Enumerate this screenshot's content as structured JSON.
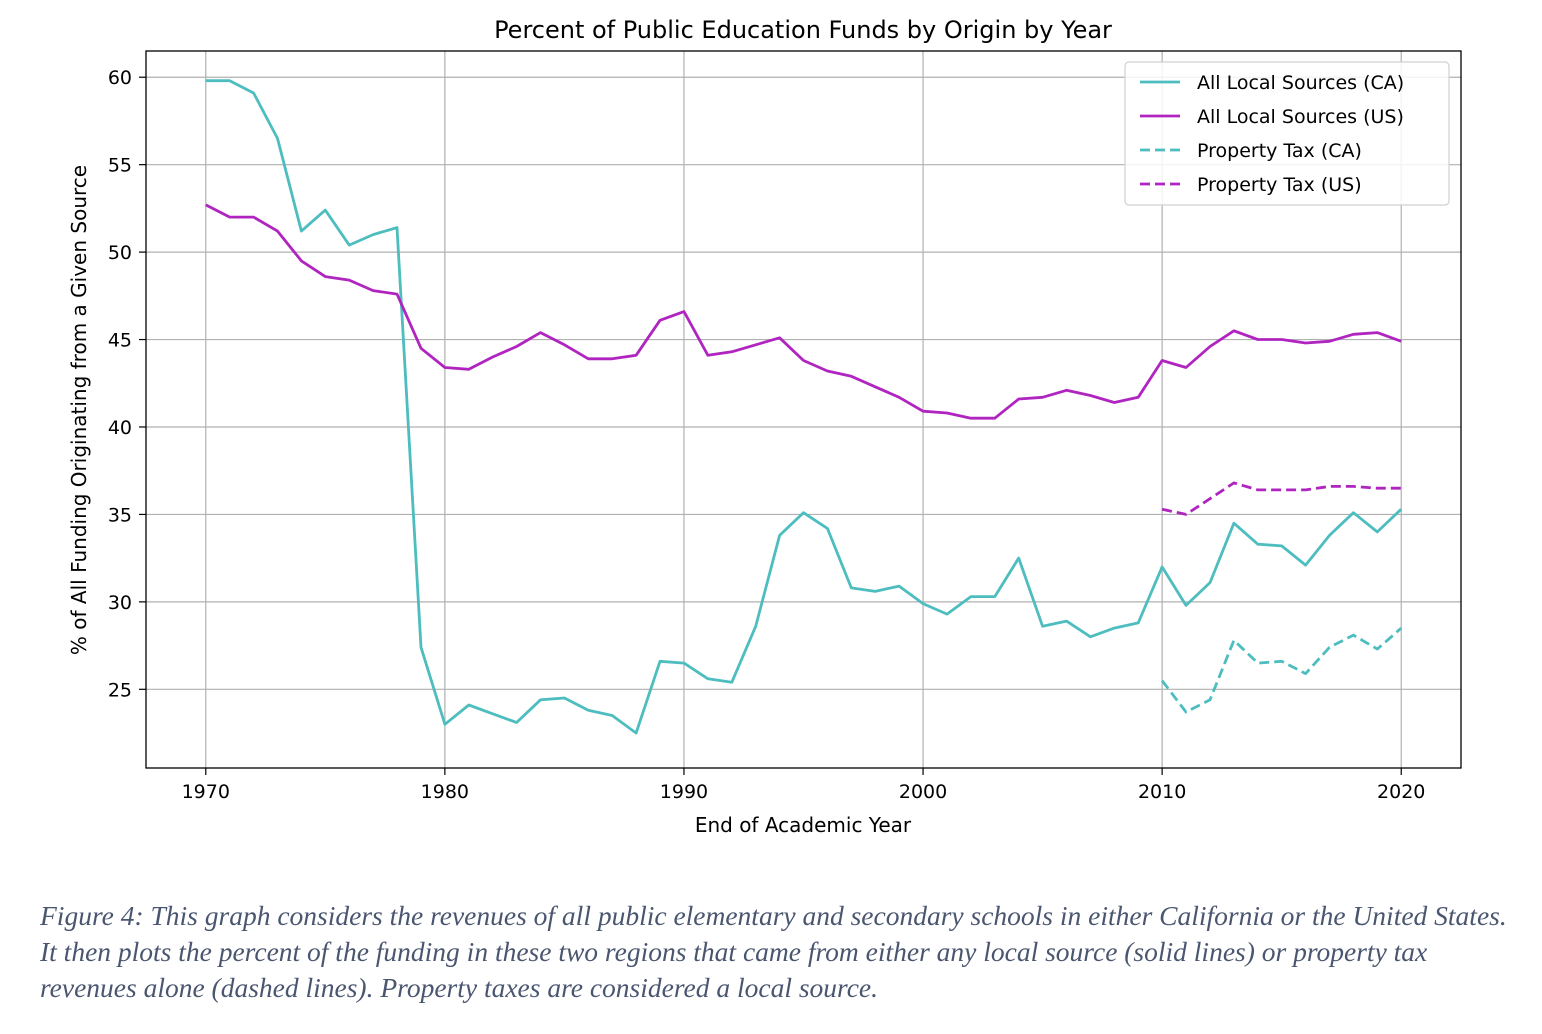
{
  "chart_data": {
    "type": "line",
    "title": "Percent of Public Education Funds by Origin by Year",
    "xlabel": "End of Academic Year",
    "ylabel": "% of All Funding Originating from a Given Source",
    "xlim": [
      1967.5,
      2022.5
    ],
    "ylim": [
      20.5,
      61.5
    ],
    "xticks": [
      1970,
      1980,
      1990,
      2000,
      2010,
      2020
    ],
    "yticks": [
      25,
      30,
      35,
      40,
      45,
      50,
      55,
      60
    ],
    "grid": true,
    "legend_position": "top-right",
    "series": [
      {
        "name": "All Local Sources (CA)",
        "color": "#4dbdbf",
        "style": "solid",
        "x": [
          1970,
          1971,
          1972,
          1973,
          1974,
          1975,
          1976,
          1977,
          1978,
          1979,
          1980,
          1981,
          1982,
          1983,
          1984,
          1985,
          1986,
          1987,
          1988,
          1989,
          1990,
          1991,
          1992,
          1993,
          1994,
          1995,
          1996,
          1997,
          1998,
          1999,
          2000,
          2001,
          2002,
          2003,
          2004,
          2005,
          2006,
          2007,
          2008,
          2009,
          2010,
          2011,
          2012,
          2013,
          2014,
          2015,
          2016,
          2017,
          2018,
          2019,
          2020
        ],
        "values": [
          59.8,
          59.8,
          59.1,
          56.5,
          51.2,
          52.4,
          50.4,
          51.0,
          51.4,
          27.4,
          23.0,
          24.1,
          23.6,
          23.1,
          24.4,
          24.5,
          23.8,
          23.5,
          22.5,
          26.6,
          26.5,
          25.6,
          25.4,
          28.6,
          33.8,
          35.1,
          34.2,
          30.8,
          30.6,
          30.9,
          29.9,
          29.3,
          30.3,
          30.3,
          32.5,
          28.6,
          28.9,
          28.0,
          28.5,
          28.8,
          32.0,
          29.8,
          31.1,
          34.5,
          33.3,
          33.2,
          32.1,
          33.8,
          35.1,
          34.0,
          35.3
        ]
      },
      {
        "name": "All Local Sources (US)",
        "color": "#b024c0",
        "style": "solid",
        "x": [
          1970,
          1971,
          1972,
          1973,
          1974,
          1975,
          1976,
          1977,
          1978,
          1979,
          1980,
          1981,
          1982,
          1983,
          1984,
          1985,
          1986,
          1987,
          1988,
          1989,
          1990,
          1991,
          1992,
          1993,
          1994,
          1995,
          1996,
          1997,
          1998,
          1999,
          2000,
          2001,
          2002,
          2003,
          2004,
          2005,
          2006,
          2007,
          2008,
          2009,
          2010,
          2011,
          2012,
          2013,
          2014,
          2015,
          2016,
          2017,
          2018,
          2019,
          2020
        ],
        "values": [
          52.7,
          52.0,
          52.0,
          51.2,
          49.5,
          48.6,
          48.4,
          47.8,
          47.6,
          44.5,
          43.4,
          43.3,
          44.0,
          44.6,
          45.4,
          44.7,
          43.9,
          43.9,
          44.1,
          46.1,
          46.6,
          44.1,
          44.3,
          44.7,
          45.1,
          43.8,
          43.2,
          42.9,
          42.3,
          41.7,
          40.9,
          40.8,
          40.5,
          40.5,
          41.6,
          41.7,
          42.1,
          41.8,
          41.4,
          41.7,
          43.8,
          43.4,
          44.6,
          45.5,
          45.0,
          45.0,
          44.8,
          44.9,
          45.3,
          45.4,
          44.9
        ]
      },
      {
        "name": "Property Tax (CA)",
        "color": "#4dbdbf",
        "style": "dashed",
        "x": [
          2010,
          2011,
          2012,
          2013,
          2014,
          2015,
          2016,
          2017,
          2018,
          2019,
          2020
        ],
        "values": [
          25.5,
          23.7,
          24.4,
          27.8,
          26.5,
          26.6,
          25.9,
          27.4,
          28.1,
          27.3,
          28.5
        ]
      },
      {
        "name": "Property Tax (US)",
        "color": "#b024c0",
        "style": "dashed",
        "x": [
          2010,
          2011,
          2012,
          2013,
          2014,
          2015,
          2016,
          2017,
          2018,
          2019,
          2020
        ],
        "values": [
          35.3,
          35.0,
          35.9,
          36.8,
          36.4,
          36.4,
          36.4,
          36.6,
          36.6,
          36.5,
          36.5
        ]
      }
    ]
  },
  "caption": "Figure 4: This graph considers the revenues of all public elementary and secondary schools in either California or the United States. It then plots the percent of the funding in these two regions that came from either any local source (solid lines) or property tax revenues alone (dashed lines). Property taxes are considered a local source."
}
